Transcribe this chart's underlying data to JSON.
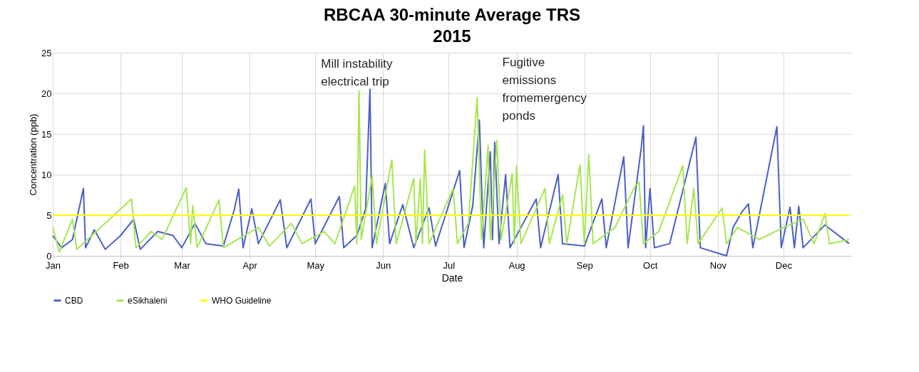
{
  "chart_data": {
    "type": "line",
    "title": "RBCAA 30-minute Average TRS\n2015",
    "xlabel": "Date",
    "ylabel": "Concentration (ppb)",
    "xlim": [
      "2015-01-01",
      "2016-01-01"
    ],
    "xticks": [
      {
        "value": "2015-01-01",
        "label": "Jan"
      },
      {
        "value": "2015-02-01",
        "label": "Feb"
      },
      {
        "value": "2015-03-01",
        "label": "Mar"
      },
      {
        "value": "2015-04-01",
        "label": "Apr"
      },
      {
        "value": "2015-05-01",
        "label": "May"
      },
      {
        "value": "2015-06-01",
        "label": "Jun"
      },
      {
        "value": "2015-07-01",
        "label": "Jul"
      },
      {
        "value": "2015-08-01",
        "label": "Aug"
      },
      {
        "value": "2015-09-01",
        "label": "Sep"
      },
      {
        "value": "2015-10-01",
        "label": "Oct"
      },
      {
        "value": "2015-11-01",
        "label": "Nov"
      },
      {
        "value": "2015-12-01",
        "label": "Dec"
      }
    ],
    "ylim": [
      0,
      25
    ],
    "yticks": [
      0,
      5,
      10,
      15,
      20,
      25
    ],
    "grid": true,
    "legend": "bottom",
    "line_style": "solid",
    "marker": "none",
    "series": [
      {
        "name": "CBD",
        "color": "#4a5fc8",
        "x": [
          "2015-01-01",
          "2015-01-05",
          "2015-01-10",
          "2015-01-15",
          "2015-01-16",
          "2015-01-20",
          "2015-01-25",
          "2015-02-01",
          "2015-02-07",
          "2015-02-10",
          "2015-02-18",
          "2015-02-25",
          "2015-03-01",
          "2015-03-07",
          "2015-03-12",
          "2015-03-20",
          "2015-03-25",
          "2015-03-27",
          "2015-03-29",
          "2015-04-02",
          "2015-04-05",
          "2015-04-15",
          "2015-04-18",
          "2015-04-29",
          "2015-05-01",
          "2015-05-12",
          "2015-05-14",
          "2015-05-20",
          "2015-05-24",
          "2015-05-26",
          "2015-05-27",
          "2015-06-02",
          "2015-06-04",
          "2015-06-10",
          "2015-06-15",
          "2015-06-22",
          "2015-06-25",
          "2015-07-06",
          "2015-07-08",
          "2015-07-12",
          "2015-07-15",
          "2015-07-17",
          "2015-07-20",
          "2015-07-21",
          "2015-07-22",
          "2015-07-24",
          "2015-07-27",
          "2015-07-29",
          "2015-08-10",
          "2015-08-12",
          "2015-08-20",
          "2015-08-22",
          "2015-09-01",
          "2015-09-09",
          "2015-09-11",
          "2015-09-19",
          "2015-09-21",
          "2015-09-27",
          "2015-09-28",
          "2015-09-29",
          "2015-10-01",
          "2015-10-03",
          "2015-10-10",
          "2015-10-22",
          "2015-10-24",
          "2015-11-05",
          "2015-11-08",
          "2015-11-12",
          "2015-11-15",
          "2015-11-17",
          "2015-11-28",
          "2015-11-30",
          "2015-12-04",
          "2015-12-06",
          "2015-12-08",
          "2015-12-10",
          "2015-12-20",
          "2015-12-31"
        ],
        "values": [
          2.5,
          1,
          2,
          8.3,
          1,
          3.2,
          0.8,
          2.5,
          4.5,
          0.8,
          3,
          2.5,
          1,
          4,
          1.5,
          1.2,
          5.7,
          8.2,
          1,
          5.8,
          1.5,
          6.9,
          1,
          7,
          1.5,
          7.3,
          1,
          2.5,
          5.8,
          20.5,
          1,
          8.9,
          1.5,
          6.3,
          1,
          5.9,
          1.2,
          10.5,
          1,
          6.2,
          16.7,
          1,
          12.8,
          2,
          14,
          1.5,
          10,
          1,
          7,
          1,
          10,
          1.5,
          1.2,
          7,
          1,
          12.2,
          1,
          13.3,
          16,
          1,
          8.3,
          1,
          1.5,
          14.6,
          1,
          0,
          3.5,
          5.4,
          6.4,
          1,
          15.9,
          1,
          6,
          1,
          6.1,
          1,
          3.8,
          1.5
        ]
      },
      {
        "name": "eSikhaleni",
        "color": "#a6e650",
        "x": [
          "2015-01-01",
          "2015-01-04",
          "2015-01-10",
          "2015-01-12",
          "2015-02-06",
          "2015-02-08",
          "2015-02-15",
          "2015-02-20",
          "2015-03-03",
          "2015-03-05",
          "2015-03-06",
          "2015-03-08",
          "2015-03-18",
          "2015-03-20",
          "2015-04-05",
          "2015-04-10",
          "2015-04-20",
          "2015-04-25",
          "2015-05-05",
          "2015-05-10",
          "2015-05-19",
          "2015-05-20",
          "2015-05-21",
          "2015-05-22",
          "2015-05-27",
          "2015-05-29",
          "2015-06-05",
          "2015-06-07",
          "2015-06-15",
          "2015-06-16",
          "2015-06-18",
          "2015-06-19",
          "2015-06-20",
          "2015-06-22",
          "2015-07-03",
          "2015-07-05",
          "2015-07-10",
          "2015-07-14",
          "2015-07-16",
          "2015-07-19",
          "2015-07-20",
          "2015-07-23",
          "2015-07-25",
          "2015-07-30",
          "2015-07-31",
          "2015-08-01",
          "2015-08-03",
          "2015-08-14",
          "2015-08-16",
          "2015-08-22",
          "2015-08-24",
          "2015-08-30",
          "2015-09-01",
          "2015-09-03",
          "2015-09-05",
          "2015-09-15",
          "2015-09-24",
          "2015-09-26",
          "2015-09-28",
          "2015-10-05",
          "2015-10-16",
          "2015-10-18",
          "2015-10-21",
          "2015-10-23",
          "2015-11-03",
          "2015-11-05",
          "2015-11-10",
          "2015-11-20",
          "2015-12-01",
          "2015-12-10",
          "2015-12-15",
          "2015-12-20",
          "2015-12-22",
          "2015-12-31"
        ],
        "values": [
          3.5,
          0.5,
          4.5,
          0.8,
          7,
          1,
          3,
          2,
          8.4,
          1.5,
          6.2,
          1,
          6.9,
          1,
          3.5,
          1.2,
          4,
          1.5,
          3,
          1.5,
          8.6,
          1.5,
          20.3,
          2,
          9.8,
          1.5,
          11.8,
          1.5,
          9.5,
          1.5,
          9.5,
          1.5,
          13,
          1.5,
          8.3,
          1.5,
          4,
          19.5,
          2,
          13.6,
          2,
          14.2,
          2,
          10.1,
          1.5,
          11,
          1.5,
          8.3,
          1.5,
          7.5,
          1.5,
          11.2,
          1.5,
          12.5,
          1.5,
          3.5,
          8.5,
          9.1,
          1.5,
          3,
          11.1,
          1.5,
          8.3,
          1.5,
          5.9,
          1.5,
          3.5,
          2,
          3.5,
          4.5,
          1.5,
          5.2,
          1.5,
          2
        ]
      },
      {
        "name": "WHO Guideline",
        "color": "#ffff00",
        "x": [
          "2015-01-01",
          "2015-12-31"
        ],
        "values": [
          5,
          5
        ]
      }
    ],
    "annotations": [
      "Mill instability\nelectrical trip",
      "Fugitive\nemissions\nfromemergency\nponds"
    ]
  }
}
